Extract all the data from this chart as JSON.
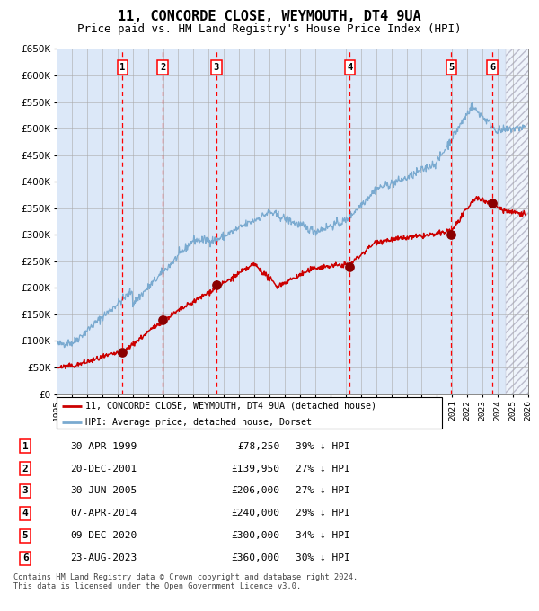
{
  "title": "11, CONCORDE CLOSE, WEYMOUTH, DT4 9UA",
  "subtitle": "Price paid vs. HM Land Registry's House Price Index (HPI)",
  "title_fontsize": 11,
  "subtitle_fontsize": 9,
  "bg_color": "#dce8f8",
  "grid_color": "#aaaaaa",
  "red_line_color": "#cc0000",
  "blue_line_color": "#7aaad0",
  "xlim": [
    1995,
    2026
  ],
  "ylim": [
    0,
    650000
  ],
  "yticks": [
    0,
    50000,
    100000,
    150000,
    200000,
    250000,
    300000,
    350000,
    400000,
    450000,
    500000,
    550000,
    600000,
    650000
  ],
  "ytick_labels": [
    "£0",
    "£50K",
    "£100K",
    "£150K",
    "£200K",
    "£250K",
    "£300K",
    "£350K",
    "£400K",
    "£450K",
    "£500K",
    "£550K",
    "£600K",
    "£650K"
  ],
  "sale_dates_x": [
    1999.33,
    2001.97,
    2005.5,
    2014.27,
    2020.94,
    2023.64
  ],
  "sale_prices": [
    78250,
    139950,
    206000,
    240000,
    300000,
    360000
  ],
  "sale_labels": [
    "1",
    "2",
    "3",
    "4",
    "5",
    "6"
  ],
  "hatch_start": 2024.5,
  "footnote": "Contains HM Land Registry data © Crown copyright and database right 2024.\nThis data is licensed under the Open Government Licence v3.0.",
  "legend_line1": "11, CONCORDE CLOSE, WEYMOUTH, DT4 9UA (detached house)",
  "legend_line2": "HPI: Average price, detached house, Dorset",
  "table_rows": [
    [
      "1",
      "30-APR-1999",
      "£78,250",
      "39% ↓ HPI"
    ],
    [
      "2",
      "20-DEC-2001",
      "£139,950",
      "27% ↓ HPI"
    ],
    [
      "3",
      "30-JUN-2005",
      "£206,000",
      "27% ↓ HPI"
    ],
    [
      "4",
      "07-APR-2014",
      "£240,000",
      "29% ↓ HPI"
    ],
    [
      "5",
      "09-DEC-2020",
      "£300,000",
      "34% ↓ HPI"
    ],
    [
      "6",
      "23-AUG-2023",
      "£360,000",
      "30% ↓ HPI"
    ]
  ]
}
